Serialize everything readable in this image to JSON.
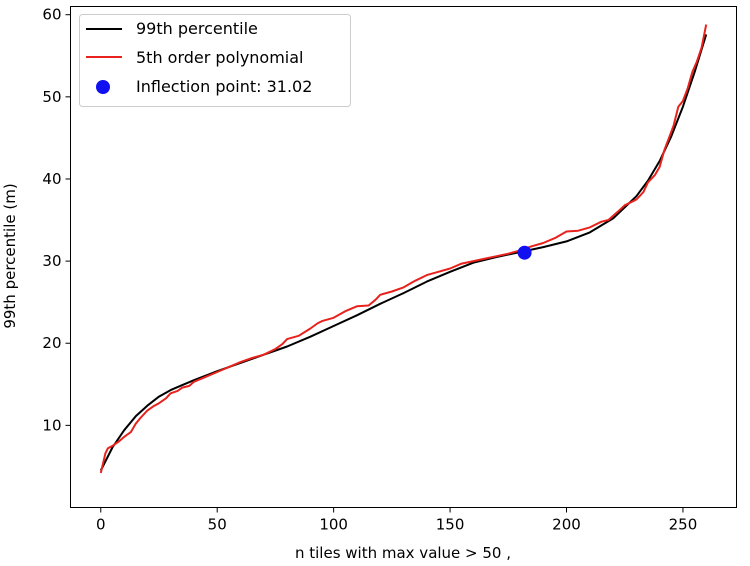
{
  "chart_data": {
    "type": "line",
    "title": "",
    "xlabel": "n tiles with max value > 50 ,",
    "ylabel": "99th percentile (m)",
    "xlim": [
      -13,
      273
    ],
    "ylim": [
      0,
      61
    ],
    "xticks": [
      0,
      50,
      100,
      150,
      200,
      250
    ],
    "yticks": [
      10,
      20,
      30,
      40,
      50,
      60
    ],
    "xtick_labels": [
      "0",
      "50",
      "100",
      "150",
      "200",
      "250"
    ],
    "ytick_labels": [
      "10",
      "20",
      "30",
      "40",
      "50",
      "60"
    ],
    "grid": false,
    "legend_position": "top-left",
    "series": [
      {
        "name": "99th percentile",
        "type": "line",
        "color": "#000000",
        "x": [
          0,
          5,
          10,
          15,
          20,
          25,
          30,
          35,
          40,
          50,
          60,
          70,
          80,
          90,
          100,
          110,
          120,
          130,
          140,
          150,
          160,
          170,
          180,
          190,
          200,
          210,
          220,
          230,
          235,
          240,
          245,
          250,
          255,
          260
        ],
        "y": [
          4.5,
          7.3,
          9.4,
          11.1,
          12.4,
          13.5,
          14.3,
          14.9,
          15.5,
          16.6,
          17.6,
          18.6,
          19.6,
          20.8,
          22.1,
          23.4,
          24.8,
          26.1,
          27.5,
          28.7,
          29.8,
          30.5,
          31.1,
          31.7,
          32.4,
          33.5,
          35.2,
          37.9,
          39.8,
          42.2,
          45.2,
          48.8,
          53.0,
          57.6
        ]
      },
      {
        "name": "5th order polynomial",
        "type": "line",
        "color": "#e8221c",
        "x": [
          0,
          2,
          3,
          5,
          8,
          10,
          13,
          15,
          17,
          20,
          23,
          25,
          28,
          30,
          33,
          35,
          38,
          40,
          45,
          50,
          55,
          60,
          65,
          70,
          75,
          78,
          80,
          85,
          90,
          93,
          95,
          100,
          105,
          110,
          115,
          118,
          120,
          125,
          130,
          135,
          140,
          145,
          150,
          155,
          160,
          165,
          170,
          175,
          180,
          185,
          190,
          195,
          200,
          205,
          210,
          215,
          218,
          222,
          225,
          230,
          233,
          235,
          238,
          240,
          242,
          244,
          246,
          248,
          250,
          252,
          254,
          256,
          258,
          260
        ],
        "y": [
          4.2,
          6.6,
          7.2,
          7.5,
          8.1,
          8.6,
          9.2,
          10.2,
          10.9,
          11.8,
          12.4,
          12.7,
          13.3,
          13.9,
          14.2,
          14.6,
          14.8,
          15.3,
          15.9,
          16.5,
          17.1,
          17.7,
          18.2,
          18.6,
          19.3,
          19.9,
          20.5,
          20.9,
          21.8,
          22.4,
          22.7,
          23.1,
          23.9,
          24.5,
          24.6,
          25.3,
          25.9,
          26.3,
          26.8,
          27.6,
          28.3,
          28.7,
          29.1,
          29.7,
          30.0,
          30.3,
          30.6,
          30.9,
          31.3,
          31.8,
          32.2,
          32.8,
          33.6,
          33.7,
          34.1,
          34.8,
          35.0,
          36.0,
          36.8,
          37.5,
          38.4,
          39.6,
          40.5,
          41.5,
          43.5,
          45.0,
          46.5,
          48.8,
          49.5,
          51.0,
          53.0,
          54.3,
          56.0,
          58.8
        ]
      }
    ],
    "inflection_point": {
      "name": "Inflection point: 31.02",
      "x": 182,
      "y": 31.02,
      "color": "#1010f0"
    }
  }
}
